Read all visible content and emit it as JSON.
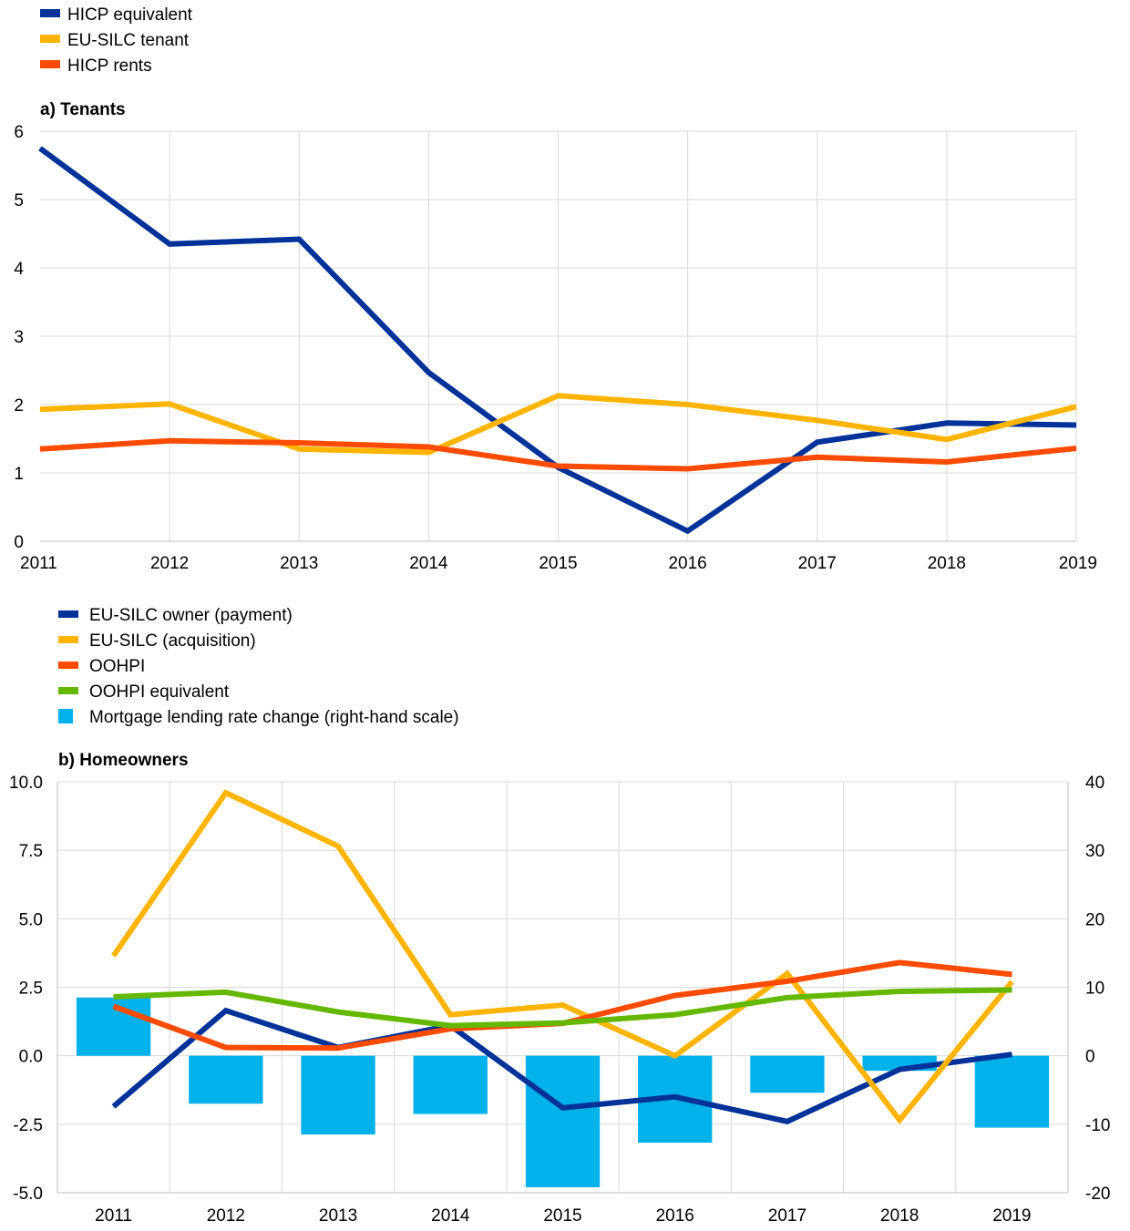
{
  "colors": {
    "blue": "#003299",
    "yellow": "#ffb400",
    "orange": "#ff4b00",
    "green": "#65b800",
    "cyan": "#00b1ea",
    "grid": "#d9d9d9"
  },
  "chart_data": [
    {
      "type": "line",
      "title": "a) Tenants",
      "legend_placement": "top-left",
      "grid": true,
      "x": [
        "2011",
        "2012",
        "2013",
        "2014",
        "2015",
        "2016",
        "2017",
        "2018",
        "2019"
      ],
      "ylim": [
        0,
        6
      ],
      "yticks": [
        "0",
        "1",
        "2",
        "3",
        "4",
        "5",
        "6"
      ],
      "series": [
        {
          "name": "HICP equivalent",
          "color": "blue",
          "values": [
            5.75,
            4.35,
            4.42,
            2.47,
            1.08,
            0.15,
            1.45,
            1.73,
            1.7
          ]
        },
        {
          "name": "EU-SILC tenant",
          "color": "yellow",
          "values": [
            1.93,
            2.01,
            1.35,
            1.3,
            2.13,
            2.0,
            1.77,
            1.49,
            1.97
          ]
        },
        {
          "name": "HICP rents",
          "color": "orange",
          "values": [
            1.35,
            1.47,
            1.44,
            1.38,
            1.1,
            1.06,
            1.23,
            1.16,
            1.36
          ]
        }
      ]
    },
    {
      "type": "line",
      "title": "b) Homeowners",
      "legend_placement": "top-left",
      "grid": true,
      "x": [
        "2011",
        "2012",
        "2013",
        "2014",
        "2015",
        "2016",
        "2017",
        "2018",
        "2019"
      ],
      "ylim": [
        -5,
        10
      ],
      "yticks": [
        "-5.0",
        "-2.5",
        "0.0",
        "2.5",
        "5.0",
        "7.5",
        "10.0"
      ],
      "y2lim": [
        -20,
        40
      ],
      "y2ticks": [
        "-20",
        "-10",
        "0",
        "10",
        "20",
        "30",
        "40"
      ],
      "series": [
        {
          "name": "EU-SILC owner (payment)",
          "color": "blue",
          "kind": "line",
          "values": [
            -1.85,
            1.65,
            0.3,
            1.1,
            -1.9,
            -1.5,
            -2.4,
            -0.5,
            0.05
          ]
        },
        {
          "name": "EU-SILC (acquisition)",
          "color": "yellow",
          "kind": "line",
          "values": [
            3.65,
            9.6,
            7.65,
            1.5,
            1.85,
            0.0,
            3.0,
            -2.35,
            2.7
          ]
        },
        {
          "name": "OOHPI",
          "color": "orange",
          "kind": "line",
          "values": [
            1.8,
            0.3,
            0.28,
            0.98,
            1.18,
            2.2,
            2.72,
            3.4,
            2.97
          ]
        },
        {
          "name": "OOHPI equivalent",
          "color": "green",
          "kind": "line",
          "values": [
            2.15,
            2.32,
            1.6,
            1.1,
            1.2,
            1.5,
            2.12,
            2.35,
            2.4
          ]
        },
        {
          "name": "Mortgage lending rate change (right-hand scale)",
          "color": "cyan",
          "kind": "bar",
          "axis": "right",
          "values": [
            8.5,
            -7.0,
            -11.5,
            -8.5,
            -19.2,
            -12.7,
            -5.4,
            -2.2,
            -10.5
          ]
        }
      ]
    }
  ]
}
